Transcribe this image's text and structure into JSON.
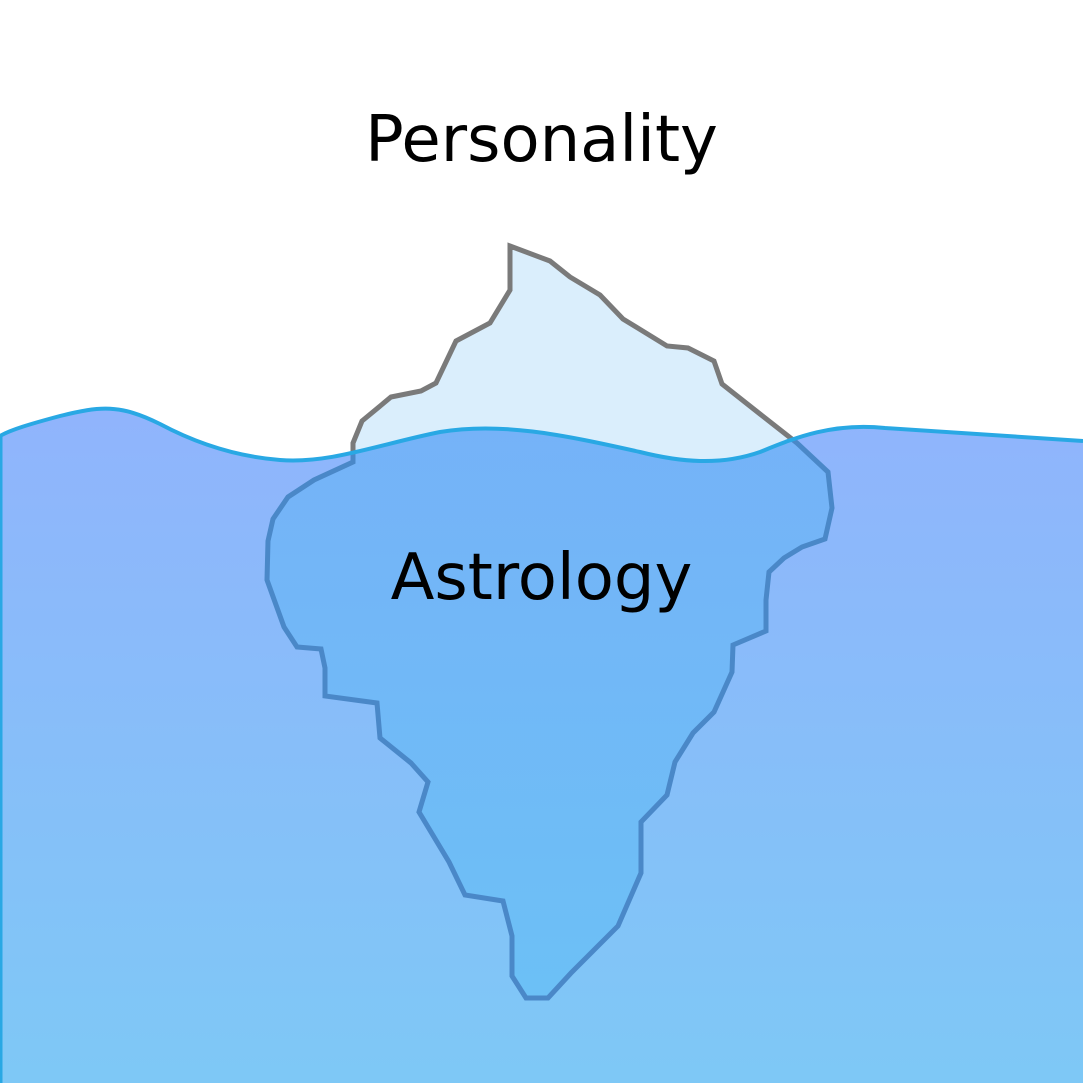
{
  "diagram": {
    "above_label": "Personality",
    "below_label": "Astrology"
  },
  "colors": {
    "water_top": "#90B4FC",
    "water_bottom": "#7EC8F6",
    "waterline": "#29A8E4",
    "ice_above": "#DAEEFC",
    "ice_outline_above": "#7A7A7A",
    "ice_below_top": "#78AEF8",
    "ice_below_bottom": "#6CC0F6",
    "ice_outline_below": "#4A88C8"
  }
}
